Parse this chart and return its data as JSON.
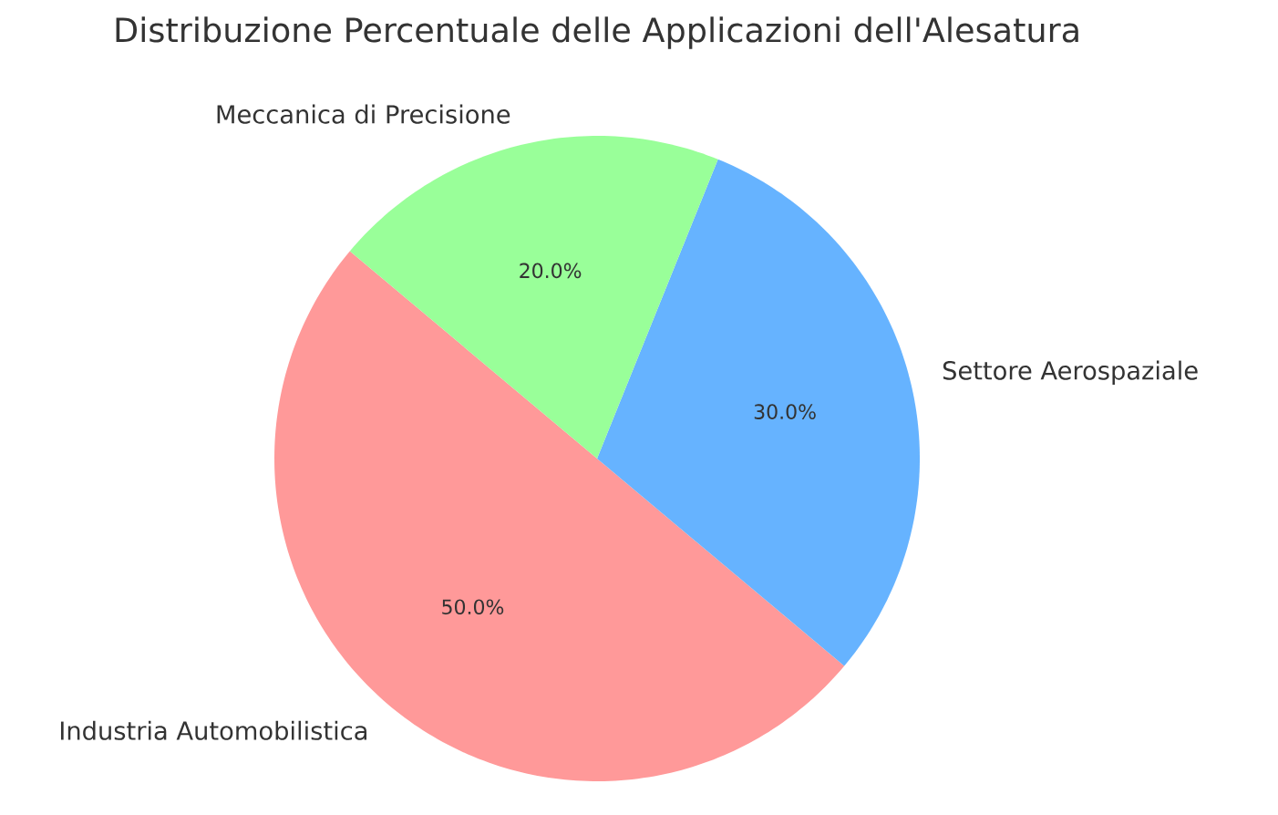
{
  "chart_data": {
    "type": "pie",
    "title": "Distribuzione Percentuale delle Applicazioni dell'Alesatura",
    "categories": [
      "Industria Automobilistica",
      "Settore Aerospaziale",
      "Meccanica di Precisione"
    ],
    "values": [
      50,
      30,
      20
    ],
    "colors": [
      "#ff9999",
      "#66b3ff",
      "#99ff99"
    ],
    "value_labels": [
      "50.0%",
      "30.0%",
      "20.0%"
    ]
  }
}
